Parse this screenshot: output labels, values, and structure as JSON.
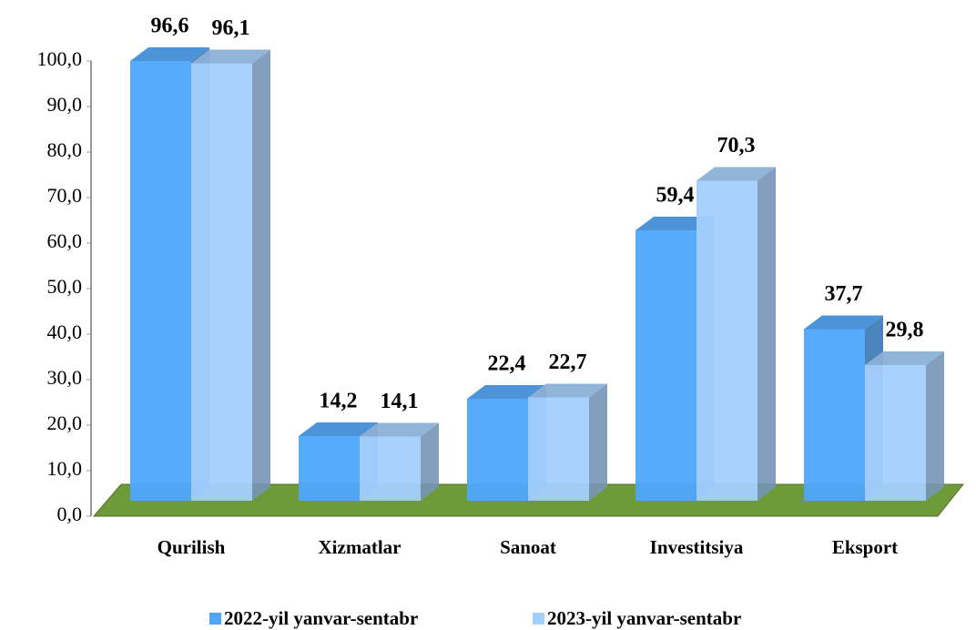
{
  "chart_data": {
    "type": "bar3d",
    "categories": [
      "Qurilish",
      "Xizmatlar",
      "Sanoat",
      "Investitsiya",
      "Eksport"
    ],
    "series": [
      {
        "name": "2022-yil yanvar-sentabr",
        "color": "#4ea6fc",
        "values": [
          96.6,
          14.2,
          22.4,
          59.4,
          37.7
        ],
        "value_labels": [
          "96,6",
          "14,2",
          "22,4",
          "59,4",
          "37,7"
        ]
      },
      {
        "name": "2023-yil yanvar-sentabr",
        "color": "#a3cffd",
        "values": [
          96.1,
          14.1,
          22.7,
          70.3,
          29.8
        ],
        "value_labels": [
          "96,1",
          "14,1",
          "22,7",
          "70,3",
          "29,8"
        ]
      }
    ],
    "ylim": [
      0,
      100
    ],
    "yticks": [
      {
        "value": 0,
        "label": "0,0"
      },
      {
        "value": 10,
        "label": "10,0"
      },
      {
        "value": 20,
        "label": "20,0"
      },
      {
        "value": 30,
        "label": "30,0"
      },
      {
        "value": 40,
        "label": "40,0"
      },
      {
        "value": 50,
        "label": "50,0"
      },
      {
        "value": 60,
        "label": "60,0"
      },
      {
        "value": 70,
        "label": "70,0"
      },
      {
        "value": 80,
        "label": "80,0"
      },
      {
        "value": 90,
        "label": "90,0"
      },
      {
        "value": 100,
        "label": "100,0"
      }
    ],
    "floor_color": "#6f9a3a"
  }
}
